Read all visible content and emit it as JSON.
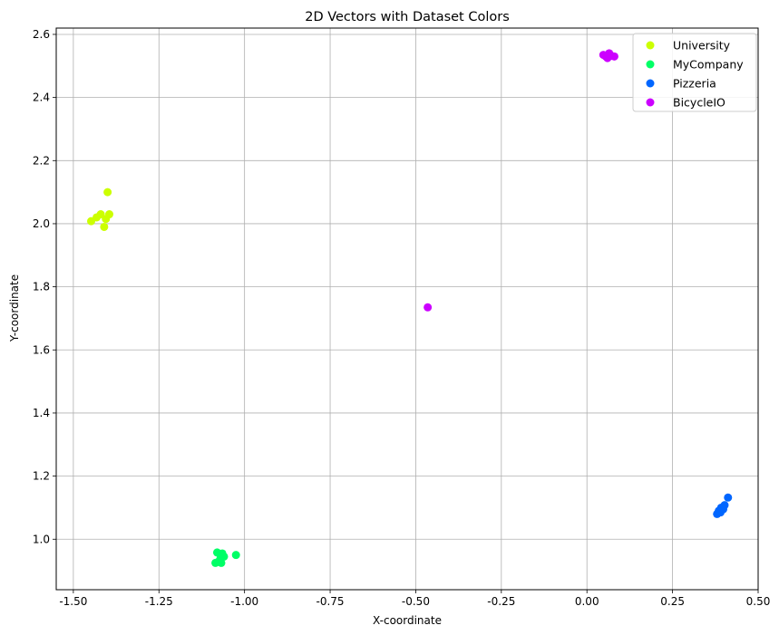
{
  "chart_data": {
    "type": "scatter",
    "title": "2D Vectors with Dataset Colors",
    "xlabel": "X-coordinate",
    "ylabel": "Y-coordinate",
    "xlim": [
      -1.55,
      0.5
    ],
    "ylim": [
      0.84,
      2.62
    ],
    "grid": true,
    "legend_position": "top-right",
    "x_ticks": [
      "-1.50",
      "-1.25",
      "-1.00",
      "-0.75",
      "-0.50",
      "-0.25",
      "0.00",
      "0.25",
      "0.50"
    ],
    "y_ticks": [
      "1.0",
      "1.2",
      "1.4",
      "1.6",
      "1.8",
      "2.0",
      "2.2",
      "2.4",
      "2.6"
    ],
    "series": [
      {
        "name": "University",
        "color": "#ccff00",
        "points": [
          [
            -1.448,
            2.008
          ],
          [
            -1.432,
            2.02
          ],
          [
            -1.42,
            2.03
          ],
          [
            -1.41,
            1.99
          ],
          [
            -1.405,
            2.015
          ],
          [
            -1.4,
            2.1
          ],
          [
            -1.395,
            2.03
          ]
        ]
      },
      {
        "name": "MyCompany",
        "color": "#00ff66",
        "points": [
          [
            -1.085,
            0.925
          ],
          [
            -1.08,
            0.958
          ],
          [
            -1.075,
            0.93
          ],
          [
            -1.07,
            0.94
          ],
          [
            -1.068,
            0.925
          ],
          [
            -1.065,
            0.955
          ],
          [
            -1.06,
            0.945
          ],
          [
            -1.025,
            0.95
          ]
        ]
      },
      {
        "name": "Pizzeria",
        "color": "#0066ff",
        "points": [
          [
            0.38,
            1.08
          ],
          [
            0.385,
            1.09
          ],
          [
            0.39,
            1.085
          ],
          [
            0.392,
            1.1
          ],
          [
            0.398,
            1.095
          ],
          [
            0.402,
            1.108
          ],
          [
            0.412,
            1.132
          ]
        ]
      },
      {
        "name": "BicycleIO",
        "color": "#cc00ff",
        "points": [
          [
            -0.465,
            1.735
          ],
          [
            0.048,
            2.535
          ],
          [
            0.055,
            2.53
          ],
          [
            0.06,
            2.525
          ],
          [
            0.065,
            2.54
          ],
          [
            0.072,
            2.532
          ],
          [
            0.08,
            2.53
          ]
        ]
      }
    ]
  },
  "colors": {
    "grid": "#b0b0b0",
    "axis": "#000000",
    "legend_border": "#cccccc"
  }
}
